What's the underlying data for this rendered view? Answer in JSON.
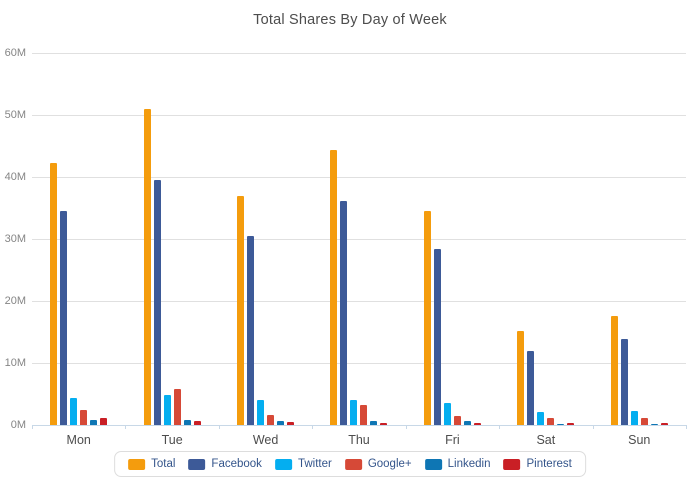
{
  "chart_data": {
    "type": "bar",
    "title": "Total Shares By Day of Week",
    "categories": [
      "Mon",
      "Tue",
      "Wed",
      "Thu",
      "Fri",
      "Sat",
      "Sun"
    ],
    "series": [
      {
        "name": "Total",
        "color": "#F49C0D",
        "values": [
          42.3,
          51.0,
          36.9,
          44.4,
          34.6,
          15.2,
          17.6
        ]
      },
      {
        "name": "Facebook",
        "color": "#3D5A98",
        "values": [
          34.5,
          39.5,
          30.5,
          36.2,
          28.4,
          11.9,
          13.9
        ]
      },
      {
        "name": "Twitter",
        "color": "#04AEF0",
        "values": [
          4.3,
          4.8,
          4.0,
          4.0,
          3.5,
          2.1,
          2.2
        ]
      },
      {
        "name": "Google+",
        "color": "#D64937",
        "values": [
          2.4,
          5.8,
          1.6,
          3.2,
          1.5,
          1.1,
          1.2
        ]
      },
      {
        "name": "Linkedin",
        "color": "#0E76B4",
        "values": [
          0.8,
          0.8,
          0.6,
          0.65,
          0.6,
          0.1,
          0.1
        ]
      },
      {
        "name": "Pinterest",
        "color": "#C91F25",
        "values": [
          1.1,
          0.7,
          0.5,
          0.3,
          0.4,
          0.25,
          0.25
        ]
      }
    ],
    "unit": "M",
    "ylim": [
      0,
      60
    ],
    "yticks": [
      "60M",
      "50M",
      "40M",
      "30M",
      "20M",
      "10M",
      "0M"
    ],
    "xlabel": "",
    "ylabel": "",
    "grid": "horizontal",
    "legend_position": "bottom-center",
    "colors": {
      "gridline": "#e0e0e0",
      "axis_line": "#c8d8e7",
      "title_text": "#4d4d4d",
      "ytick_text": "#858585",
      "xtick_text": "#4d4d4d",
      "legend_text": "#34558b"
    }
  }
}
